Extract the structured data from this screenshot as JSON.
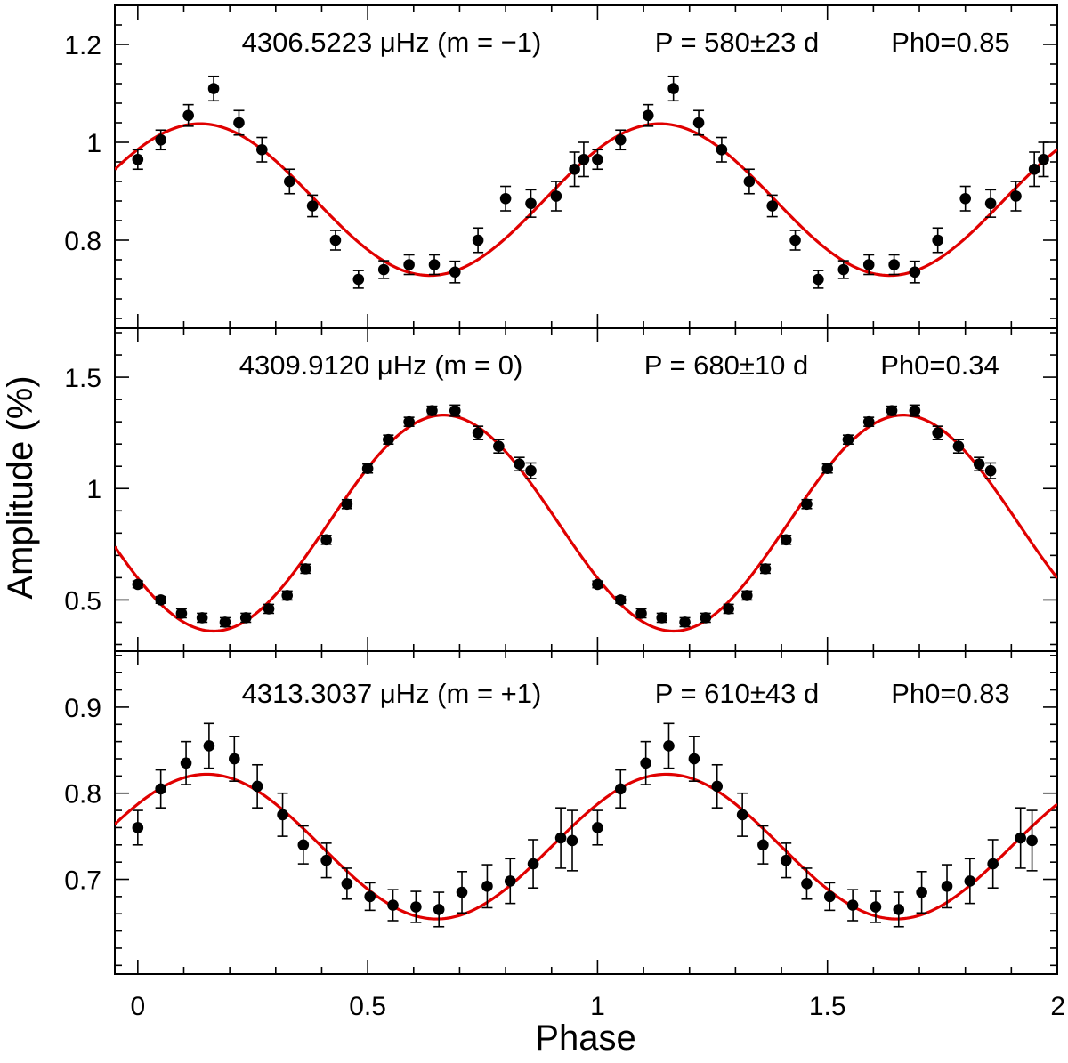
{
  "figure": {
    "xlabel": "Phase",
    "ylabel": "Amplitude (%)",
    "fit_color": "#e00000",
    "point_color": "#000000"
  },
  "chart_data": [
    {
      "type": "scatter",
      "frequency_label": "4306.5223 μHz (m = −1)",
      "period_label": "P = 580±23 d",
      "phase_label": "Ph0=0.85",
      "xlim": [
        -0.05,
        2.0
      ],
      "ylim": [
        0.62,
        1.28
      ],
      "yticks": [
        0.8,
        1,
        1.2
      ],
      "ytick_labels": [
        "0.8",
        "1",
        "1.2"
      ],
      "fit": {
        "mean": 0.883,
        "amplitude": 0.155,
        "peak_phase": 0.135
      },
      "series": [
        {
          "x": [
            0.0,
            0.05,
            0.11,
            0.165,
            0.22,
            0.27,
            0.33,
            0.38,
            0.43,
            0.48,
            0.535,
            0.59,
            0.645,
            0.69,
            0.74,
            0.8,
            0.855,
            0.91,
            0.95,
            0.97
          ],
          "y": [
            0.965,
            1.005,
            1.055,
            1.11,
            1.04,
            0.985,
            0.92,
            0.87,
            0.8,
            0.72,
            0.74,
            0.75,
            0.75,
            0.735,
            0.8,
            0.885,
            0.875,
            0.89,
            0.945,
            0.965
          ],
          "err": [
            0.02,
            0.02,
            0.022,
            0.025,
            0.025,
            0.025,
            0.025,
            0.022,
            0.02,
            0.018,
            0.018,
            0.02,
            0.02,
            0.022,
            0.025,
            0.025,
            0.028,
            0.03,
            0.035,
            0.035
          ]
        }
      ]
    },
    {
      "type": "scatter",
      "frequency_label": "4309.9120 μHz (m = 0)",
      "period_label": "P = 680±10 d",
      "phase_label": "Ph0=0.34",
      "xlim": [
        -0.05,
        2.0
      ],
      "ylim": [
        0.27,
        1.72
      ],
      "yticks": [
        0.5,
        1,
        1.5
      ],
      "ytick_labels": [
        "0.5",
        "1",
        "1.5"
      ],
      "fit": {
        "mean": 0.845,
        "amplitude": 0.485,
        "peak_phase": 0.665
      },
      "series": [
        {
          "x": [
            0.0,
            0.05,
            0.095,
            0.14,
            0.19,
            0.235,
            0.285,
            0.325,
            0.365,
            0.41,
            0.455,
            0.5,
            0.545,
            0.59,
            0.64,
            0.69,
            0.74,
            0.785,
            0.83,
            0.855
          ],
          "y": [
            0.57,
            0.5,
            0.44,
            0.42,
            0.4,
            0.42,
            0.46,
            0.52,
            0.64,
            0.77,
            0.93,
            1.09,
            1.22,
            1.3,
            1.35,
            1.35,
            1.25,
            1.19,
            1.11,
            1.08
          ],
          "err": [
            0.015,
            0.015,
            0.02,
            0.02,
            0.02,
            0.02,
            0.02,
            0.02,
            0.02,
            0.02,
            0.02,
            0.02,
            0.02,
            0.02,
            0.02,
            0.025,
            0.03,
            0.03,
            0.03,
            0.035
          ]
        }
      ]
    },
    {
      "type": "scatter",
      "frequency_label": "4313.3037 μHz (m = +1)",
      "period_label": "P = 610±43 d",
      "phase_label": "Ph0=0.83",
      "xlim": [
        -0.05,
        2.0
      ],
      "ylim": [
        0.59,
        0.965
      ],
      "yticks": [
        0.7,
        0.8,
        0.9
      ],
      "ytick_labels": [
        "0.7",
        "0.8",
        "0.9"
      ],
      "fit": {
        "mean": 0.738,
        "amplitude": 0.084,
        "peak_phase": 0.15
      },
      "series": [
        {
          "x": [
            0.0,
            0.05,
            0.105,
            0.155,
            0.21,
            0.26,
            0.315,
            0.36,
            0.41,
            0.455,
            0.505,
            0.555,
            0.605,
            0.655,
            0.705,
            0.76,
            0.81,
            0.86,
            0.92,
            0.945
          ],
          "y": [
            0.76,
            0.805,
            0.835,
            0.855,
            0.84,
            0.808,
            0.775,
            0.74,
            0.722,
            0.695,
            0.68,
            0.67,
            0.668,
            0.665,
            0.685,
            0.692,
            0.698,
            0.718,
            0.748,
            0.745
          ],
          "err": [
            0.02,
            0.022,
            0.025,
            0.026,
            0.026,
            0.025,
            0.025,
            0.022,
            0.02,
            0.018,
            0.016,
            0.018,
            0.018,
            0.02,
            0.024,
            0.025,
            0.026,
            0.028,
            0.035,
            0.035
          ]
        }
      ]
    }
  ],
  "xaxis": {
    "ticks": [
      0,
      0.5,
      1,
      1.5,
      2
    ],
    "tick_labels": [
      "0",
      "0.5",
      "1",
      "1.5",
      "2"
    ]
  }
}
